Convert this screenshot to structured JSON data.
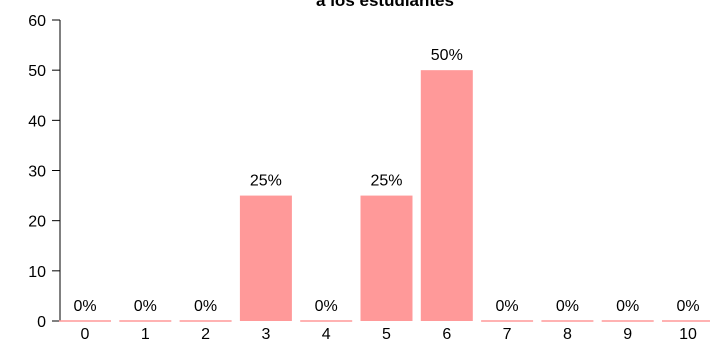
{
  "chart_data": {
    "type": "bar",
    "title": "a los estudiantes",
    "categories": [
      "0",
      "1",
      "2",
      "3",
      "4",
      "5",
      "6",
      "7",
      "8",
      "9",
      "10"
    ],
    "values": [
      0,
      0,
      0,
      25,
      0,
      25,
      50,
      0,
      0,
      0,
      0
    ],
    "data_labels": [
      "0%",
      "0%",
      "0%",
      "25%",
      "0%",
      "25%",
      "50%",
      "0%",
      "0%",
      "0%",
      "0%"
    ],
    "ylim": [
      0,
      60
    ],
    "yticks": [
      "0",
      "10",
      "20",
      "30",
      "40",
      "50",
      "60"
    ],
    "xlabel": "",
    "ylabel": "",
    "grid": false,
    "bar_color": "#ff9999"
  }
}
